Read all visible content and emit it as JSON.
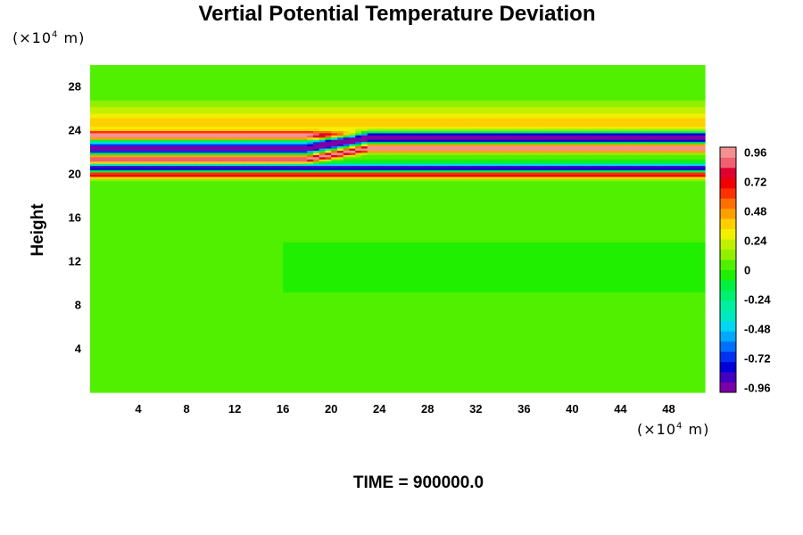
{
  "chart_data": {
    "type": "heatmap",
    "title": "Vertial Potential Temperature Deviation",
    "ylabel": "Height",
    "y_unit": {
      "prefix": "(×10",
      "exp": "4",
      "suffix": " m)"
    },
    "x_unit": {
      "prefix": "(×10",
      "exp": "4",
      "suffix": " m)"
    },
    "xlim": [
      0,
      51
    ],
    "ylim": [
      0,
      30
    ],
    "x_ticks": [
      "4",
      "8",
      "12",
      "16",
      "20",
      "24",
      "28",
      "32",
      "36",
      "40",
      "44",
      "48"
    ],
    "y_ticks": [
      "4",
      "8",
      "12",
      "16",
      "20",
      "24",
      "28"
    ],
    "colorbar": {
      "range": [
        -1.0,
        1.0
      ],
      "ticks": [
        "0.96",
        "0.72",
        "0.48",
        "0.24",
        "0",
        "-0.24",
        "-0.48",
        "-0.72",
        "-0.96"
      ],
      "colors": [
        "#7a00a8",
        "#4400c0",
        "#0000d8",
        "#0030f0",
        "#0070ff",
        "#00a8ff",
        "#00d8f0",
        "#00e8c0",
        "#00f0a0",
        "#00f070",
        "#00f040",
        "#20f000",
        "#50f000",
        "#90f000",
        "#c0f000",
        "#f0f000",
        "#ffd000",
        "#ffa000",
        "#ff7000",
        "#ff3000",
        "#f00000",
        "#e00030",
        "#f06070",
        "#f49090"
      ]
    },
    "field_description_bands": [
      {
        "y": 26.0,
        "amp": 0.15
      },
      {
        "y": 24.7,
        "amp": 0.35
      },
      {
        "y": 23.6,
        "amp": 0.95
      },
      {
        "y": 22.8,
        "amp": -0.5
      },
      {
        "y": 22.3,
        "amp": -1.0
      },
      {
        "y": 21.4,
        "amp": 1.0
      },
      {
        "y": 20.6,
        "amp": -1.0
      },
      {
        "y": 20.0,
        "amp": 0.8
      }
    ],
    "time_label": "TIME = 900000.0"
  }
}
